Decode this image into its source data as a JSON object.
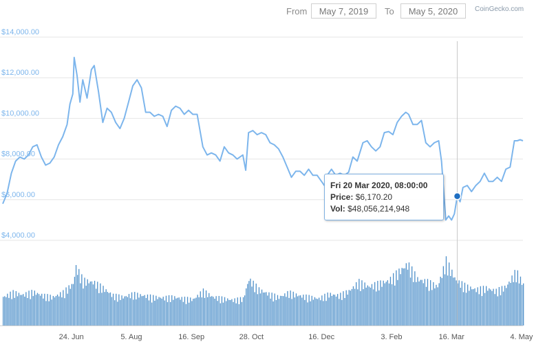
{
  "range": {
    "from_label": "From",
    "from_value": "May 7, 2019",
    "to_label": "To",
    "to_value": "May 5, 2020"
  },
  "brand": "CoinGecko.com",
  "tooltip": {
    "title": "Fri 20 Mar 2020, 08:00:00",
    "price_label": "Price:",
    "price_value": "$6,170.20",
    "vol_label": "Vol:",
    "vol_value": "$48,056,214,948"
  },
  "colors": {
    "line": "#7cb5ec",
    "volume": "#4d8fc9",
    "grid": "#e6e6e6",
    "axis_text": "#7cb5ec",
    "marker": "#1f6fc2"
  },
  "chart_data": {
    "type": "line",
    "title": "",
    "xlabel": "",
    "ylabel": "",
    "ylim": [
      4000,
      14000
    ],
    "y_ticks": [
      "$4,000.00",
      "$6,000.00",
      "$8,000.00",
      "$10,000.00",
      "$12,000.00",
      "$14,000.00"
    ],
    "x_ticks": [
      "24. Jun",
      "5. Aug",
      "16. Sep",
      "28. Oct",
      "16. Dec",
      "3. Feb",
      "16. Mar",
      "4. May"
    ],
    "hover_date": "2020-03-20",
    "hover_price": 6170.2,
    "series": [
      {
        "values": [
          [
            "2019-05-07",
            5800
          ],
          [
            "2019-05-10",
            6300
          ],
          [
            "2019-05-13",
            7300
          ],
          [
            "2019-05-16",
            7900
          ],
          [
            "2019-05-19",
            8100
          ],
          [
            "2019-05-22",
            8000
          ],
          [
            "2019-05-25",
            8200
          ],
          [
            "2019-05-28",
            8600
          ],
          [
            "2019-05-31",
            8700
          ],
          [
            "2019-06-03",
            8100
          ],
          [
            "2019-06-06",
            7700
          ],
          [
            "2019-06-09",
            7800
          ],
          [
            "2019-06-12",
            8100
          ],
          [
            "2019-06-15",
            8700
          ],
          [
            "2019-06-18",
            9100
          ],
          [
            "2019-06-21",
            9700
          ],
          [
            "2019-06-23",
            10700
          ],
          [
            "2019-06-25",
            11200
          ],
          [
            "2019-06-26",
            13000
          ],
          [
            "2019-06-28",
            12100
          ],
          [
            "2019-06-30",
            10800
          ],
          [
            "2019-07-02",
            11900
          ],
          [
            "2019-07-05",
            11000
          ],
          [
            "2019-07-08",
            12400
          ],
          [
            "2019-07-10",
            12600
          ],
          [
            "2019-07-13",
            11300
          ],
          [
            "2019-07-16",
            9800
          ],
          [
            "2019-07-19",
            10500
          ],
          [
            "2019-07-22",
            10300
          ],
          [
            "2019-07-25",
            9800
          ],
          [
            "2019-07-28",
            9500
          ],
          [
            "2019-07-31",
            10000
          ],
          [
            "2019-08-03",
            10800
          ],
          [
            "2019-08-06",
            11600
          ],
          [
            "2019-08-09",
            11900
          ],
          [
            "2019-08-12",
            11500
          ],
          [
            "2019-08-15",
            10300
          ],
          [
            "2019-08-18",
            10300
          ],
          [
            "2019-08-21",
            10100
          ],
          [
            "2019-08-24",
            10200
          ],
          [
            "2019-08-27",
            10100
          ],
          [
            "2019-08-30",
            9600
          ],
          [
            "2019-09-02",
            10400
          ],
          [
            "2019-09-05",
            10600
          ],
          [
            "2019-09-08",
            10500
          ],
          [
            "2019-09-11",
            10200
          ],
          [
            "2019-09-14",
            10400
          ],
          [
            "2019-09-17",
            10200
          ],
          [
            "2019-09-20",
            10200
          ],
          [
            "2019-09-24",
            8600
          ],
          [
            "2019-09-27",
            8200
          ],
          [
            "2019-09-30",
            8300
          ],
          [
            "2019-10-03",
            8200
          ],
          [
            "2019-10-06",
            7900
          ],
          [
            "2019-10-09",
            8600
          ],
          [
            "2019-10-12",
            8300
          ],
          [
            "2019-10-15",
            8200
          ],
          [
            "2019-10-18",
            8000
          ],
          [
            "2019-10-22",
            8200
          ],
          [
            "2019-10-24",
            7450
          ],
          [
            "2019-10-26",
            9300
          ],
          [
            "2019-10-29",
            9400
          ],
          [
            "2019-11-01",
            9200
          ],
          [
            "2019-11-04",
            9300
          ],
          [
            "2019-11-07",
            9200
          ],
          [
            "2019-11-10",
            8800
          ],
          [
            "2019-11-13",
            8700
          ],
          [
            "2019-11-16",
            8500
          ],
          [
            "2019-11-19",
            8100
          ],
          [
            "2019-11-22",
            7600
          ],
          [
            "2019-11-25",
            7100
          ],
          [
            "2019-11-28",
            7400
          ],
          [
            "2019-12-01",
            7400
          ],
          [
            "2019-12-04",
            7200
          ],
          [
            "2019-12-07",
            7500
          ],
          [
            "2019-12-10",
            7200
          ],
          [
            "2019-12-13",
            7200
          ],
          [
            "2019-12-16",
            6900
          ],
          [
            "2019-12-18",
            6700
          ],
          [
            "2019-12-20",
            7200
          ],
          [
            "2019-12-23",
            7500
          ],
          [
            "2019-12-26",
            7200
          ],
          [
            "2019-12-29",
            7300
          ],
          [
            "2020-01-01",
            7200
          ],
          [
            "2020-01-04",
            7350
          ],
          [
            "2020-01-07",
            8100
          ],
          [
            "2020-01-10",
            7900
          ],
          [
            "2020-01-14",
            8800
          ],
          [
            "2020-01-17",
            8900
          ],
          [
            "2020-01-20",
            8600
          ],
          [
            "2020-01-23",
            8400
          ],
          [
            "2020-01-26",
            8600
          ],
          [
            "2020-01-29",
            9300
          ],
          [
            "2020-02-01",
            9350
          ],
          [
            "2020-02-04",
            9200
          ],
          [
            "2020-02-07",
            9800
          ],
          [
            "2020-02-10",
            10100
          ],
          [
            "2020-02-13",
            10300
          ],
          [
            "2020-02-15",
            10200
          ],
          [
            "2020-02-18",
            9700
          ],
          [
            "2020-02-21",
            9700
          ],
          [
            "2020-02-24",
            9900
          ],
          [
            "2020-02-27",
            8800
          ],
          [
            "2020-03-01",
            8600
          ],
          [
            "2020-03-04",
            8800
          ],
          [
            "2020-03-07",
            8900
          ],
          [
            "2020-03-09",
            7900
          ],
          [
            "2020-03-12",
            5000
          ],
          [
            "2020-03-14",
            5200
          ],
          [
            "2020-03-16",
            5000
          ],
          [
            "2020-03-18",
            5300
          ],
          [
            "2020-03-20",
            6170
          ],
          [
            "2020-03-22",
            5900
          ],
          [
            "2020-03-24",
            6600
          ],
          [
            "2020-03-27",
            6700
          ],
          [
            "2020-03-30",
            6400
          ],
          [
            "2020-04-02",
            6700
          ],
          [
            "2020-04-05",
            6900
          ],
          [
            "2020-04-08",
            7300
          ],
          [
            "2020-04-11",
            6900
          ],
          [
            "2020-04-14",
            6900
          ],
          [
            "2020-04-17",
            7100
          ],
          [
            "2020-04-20",
            6900
          ],
          [
            "2020-04-23",
            7500
          ],
          [
            "2020-04-26",
            7600
          ],
          [
            "2020-04-29",
            8900
          ],
          [
            "2020-05-01",
            8900
          ],
          [
            "2020-05-03",
            8950
          ],
          [
            "2020-05-05",
            8900
          ]
        ]
      }
    ],
    "volume": {
      "ylim": [
        0,
        100
      ],
      "values": [
        [
          "2019-05-07",
          38
        ],
        [
          "2019-05-14",
          44
        ],
        [
          "2019-05-21",
          41
        ],
        [
          "2019-05-28",
          45
        ],
        [
          "2019-06-04",
          40
        ],
        [
          "2019-06-11",
          38
        ],
        [
          "2019-06-18",
          44
        ],
        [
          "2019-06-25",
          56
        ],
        [
          "2019-06-27",
          78
        ],
        [
          "2019-07-02",
          60
        ],
        [
          "2019-07-09",
          58
        ],
        [
          "2019-07-16",
          50
        ],
        [
          "2019-07-23",
          40
        ],
        [
          "2019-07-30",
          38
        ],
        [
          "2019-08-06",
          42
        ],
        [
          "2019-08-13",
          40
        ],
        [
          "2019-08-20",
          38
        ],
        [
          "2019-08-27",
          37
        ],
        [
          "2019-09-03",
          38
        ],
        [
          "2019-09-10",
          36
        ],
        [
          "2019-09-17",
          35
        ],
        [
          "2019-09-24",
          46
        ],
        [
          "2019-10-01",
          38
        ],
        [
          "2019-10-08",
          36
        ],
        [
          "2019-10-15",
          34
        ],
        [
          "2019-10-22",
          36
        ],
        [
          "2019-10-26",
          62
        ],
        [
          "2019-11-02",
          48
        ],
        [
          "2019-11-09",
          42
        ],
        [
          "2019-11-16",
          38
        ],
        [
          "2019-11-23",
          44
        ],
        [
          "2019-11-30",
          40
        ],
        [
          "2019-12-07",
          38
        ],
        [
          "2019-12-14",
          36
        ],
        [
          "2019-12-21",
          42
        ],
        [
          "2019-12-28",
          40
        ],
        [
          "2020-01-04",
          46
        ],
        [
          "2020-01-11",
          58
        ],
        [
          "2020-01-18",
          52
        ],
        [
          "2020-01-25",
          56
        ],
        [
          "2020-02-01",
          60
        ],
        [
          "2020-02-08",
          72
        ],
        [
          "2020-02-14",
          82
        ],
        [
          "2020-02-21",
          62
        ],
        [
          "2020-02-28",
          58
        ],
        [
          "2020-03-06",
          52
        ],
        [
          "2020-03-12",
          86
        ],
        [
          "2020-03-19",
          60
        ],
        [
          "2020-03-26",
          52
        ],
        [
          "2020-04-02",
          48
        ],
        [
          "2020-04-09",
          50
        ],
        [
          "2020-04-16",
          46
        ],
        [
          "2020-04-23",
          52
        ],
        [
          "2020-04-30",
          72
        ],
        [
          "2020-05-05",
          55
        ]
      ]
    }
  }
}
